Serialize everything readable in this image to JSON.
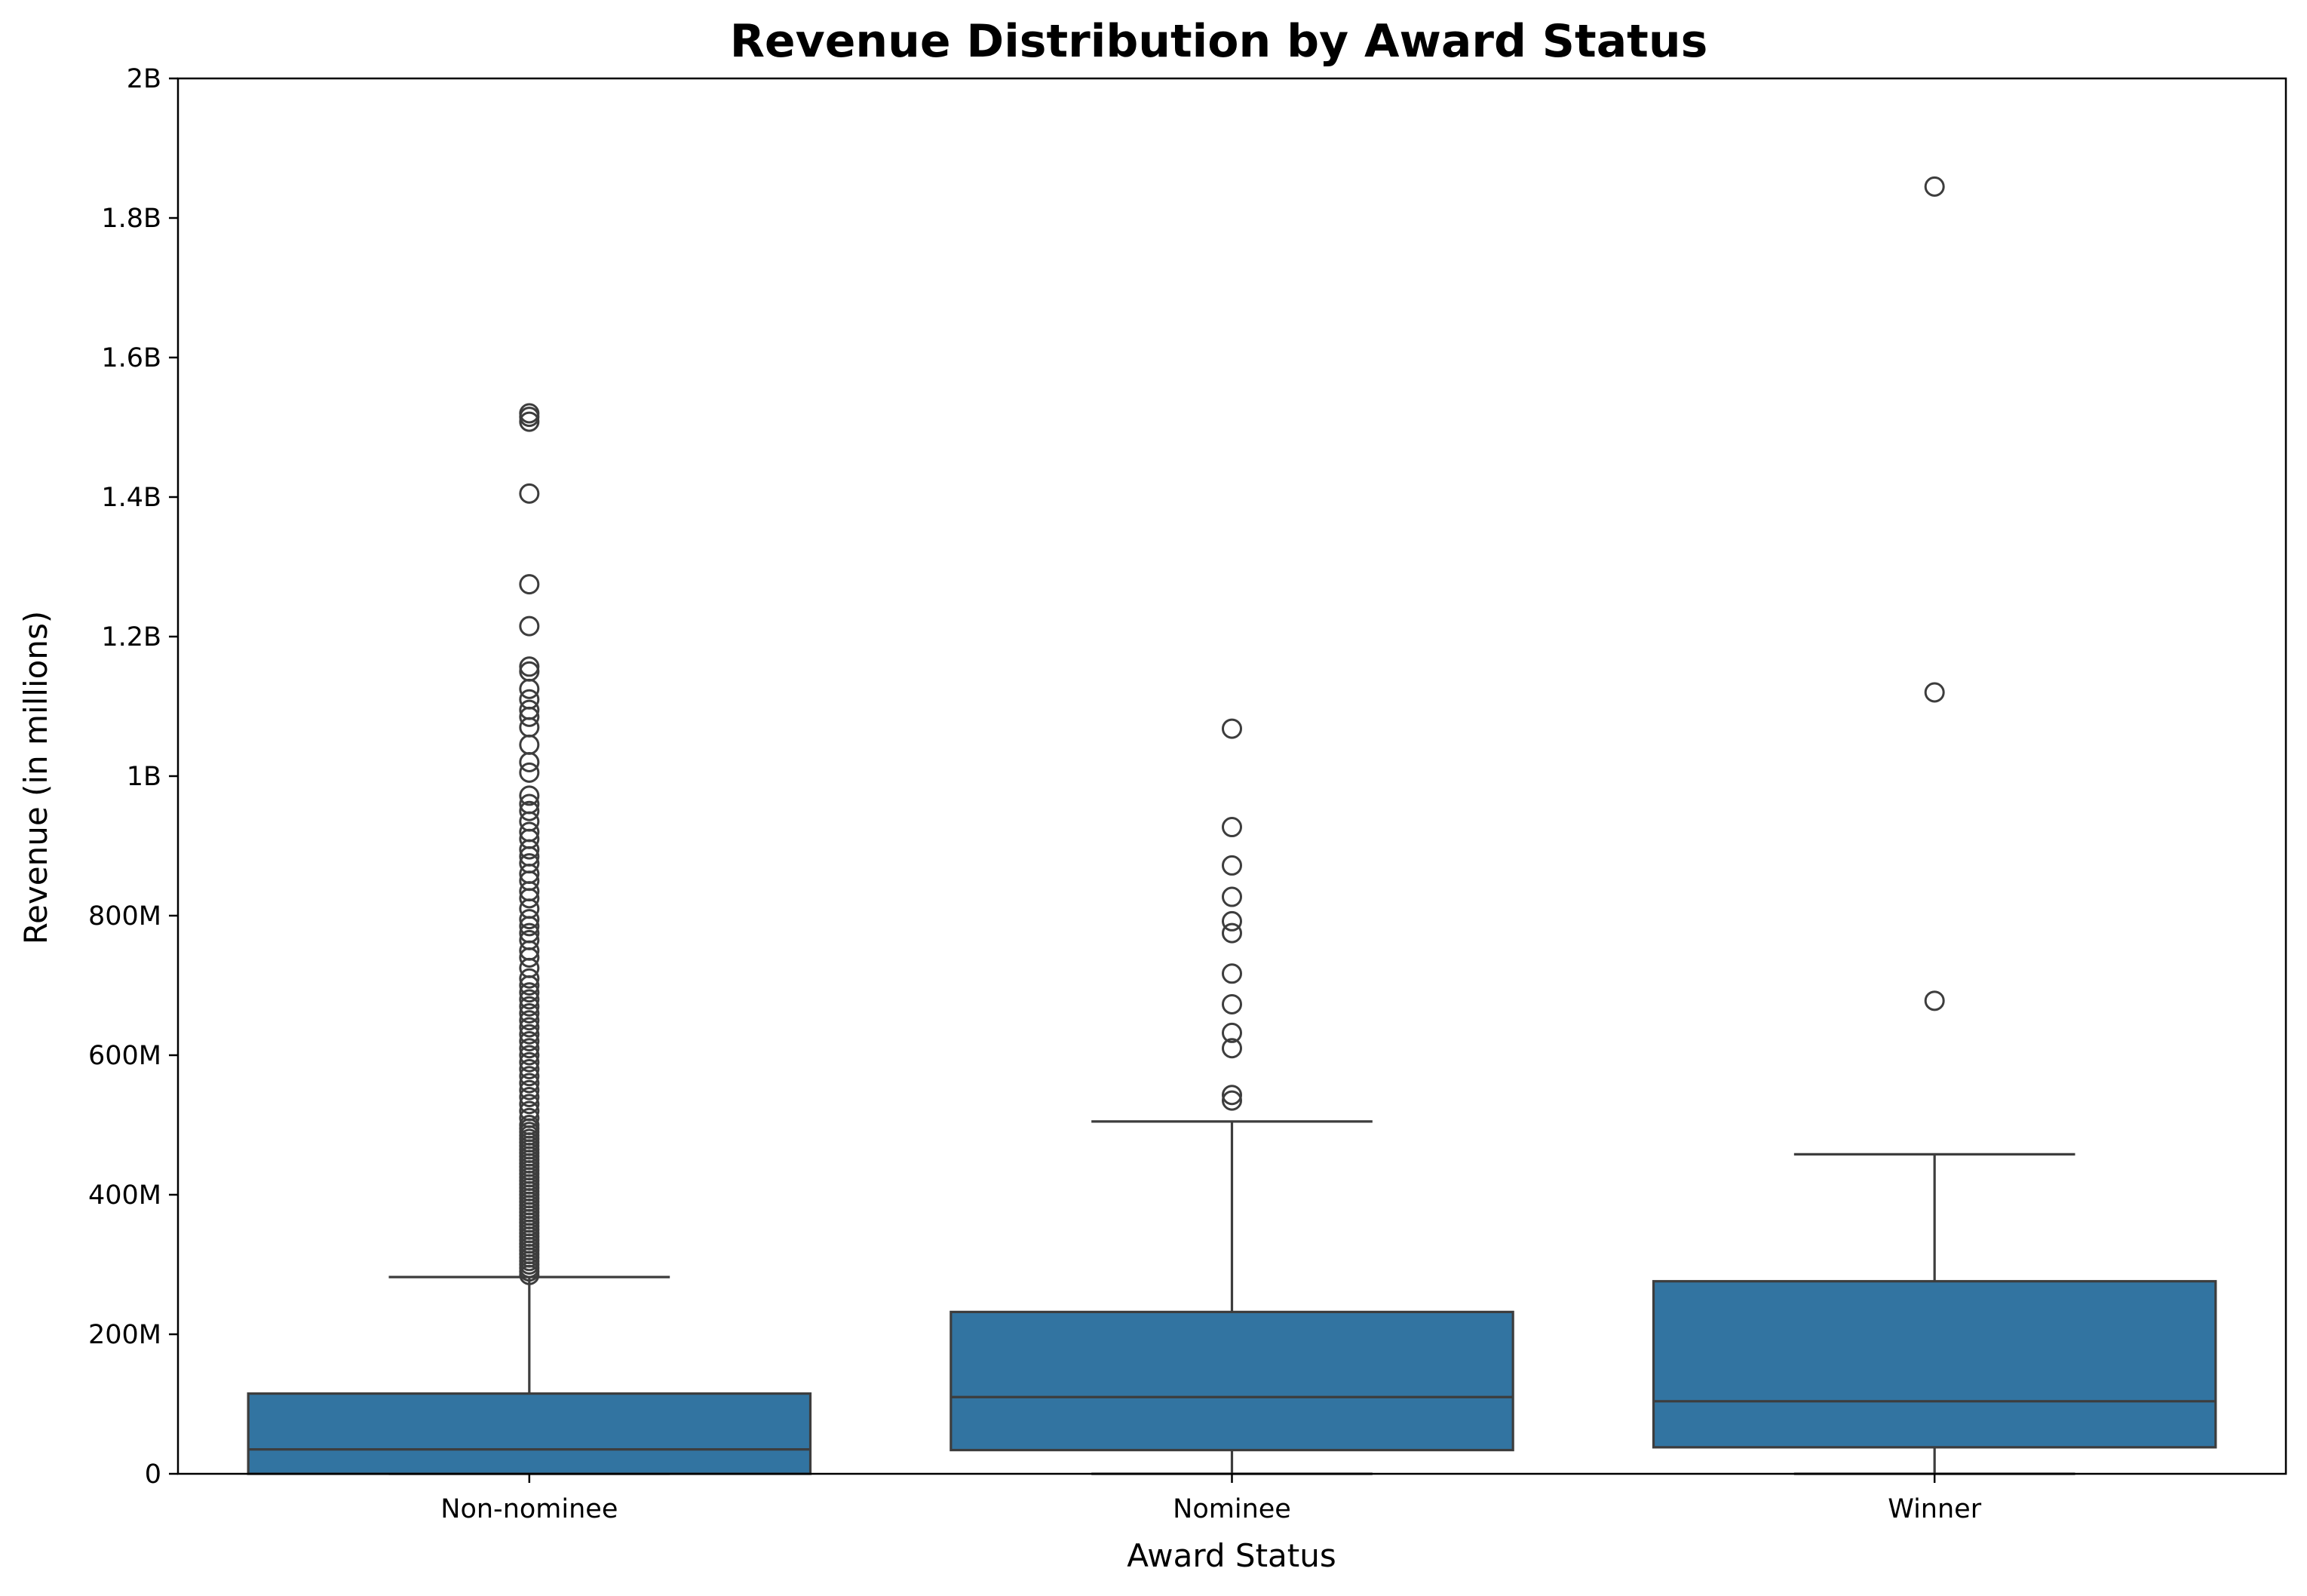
{
  "chart_data": {
    "type": "box",
    "title": "Revenue Distribution by Award Status",
    "xlabel": "Award Status",
    "ylabel": "Revenue (in millions)",
    "ylim": [
      0,
      2000000000
    ],
    "y_ticks": [
      {
        "value": 0,
        "label": "0"
      },
      {
        "value": 200000000,
        "label": "200M"
      },
      {
        "value": 400000000,
        "label": "400M"
      },
      {
        "value": 600000000,
        "label": "600M"
      },
      {
        "value": 800000000,
        "label": "800M"
      },
      {
        "value": 1000000000,
        "label": "1B"
      },
      {
        "value": 1200000000,
        "label": "1.2B"
      },
      {
        "value": 1400000000,
        "label": "1.4B"
      },
      {
        "value": 1600000000,
        "label": "1.6B"
      },
      {
        "value": 1800000000,
        "label": "1.8B"
      },
      {
        "value": 2000000000,
        "label": "2B"
      }
    ],
    "categories": [
      "Non-nominee",
      "Nominee",
      "Winner"
    ],
    "box_color": "#3274a1",
    "line_color": "#3d3d3d",
    "grid": false,
    "boxes": [
      {
        "category": "Non-nominee",
        "whisker_low": 0,
        "q1": 0,
        "median": 35000000,
        "q3": 115000000,
        "whisker_high": 282000000,
        "outliers": [
          285000000,
          290000000,
          295000000,
          300000000,
          305000000,
          310000000,
          315000000,
          320000000,
          325000000,
          330000000,
          335000000,
          340000000,
          345000000,
          350000000,
          355000000,
          360000000,
          365000000,
          370000000,
          375000000,
          380000000,
          385000000,
          390000000,
          395000000,
          400000000,
          405000000,
          410000000,
          415000000,
          420000000,
          425000000,
          430000000,
          435000000,
          440000000,
          445000000,
          450000000,
          455000000,
          460000000,
          465000000,
          470000000,
          475000000,
          480000000,
          485000000,
          490000000,
          495000000,
          500000000,
          510000000,
          520000000,
          530000000,
          540000000,
          550000000,
          560000000,
          570000000,
          580000000,
          590000000,
          600000000,
          610000000,
          620000000,
          630000000,
          640000000,
          650000000,
          660000000,
          670000000,
          680000000,
          690000000,
          700000000,
          710000000,
          725000000,
          740000000,
          750000000,
          765000000,
          775000000,
          785000000,
          795000000,
          810000000,
          825000000,
          835000000,
          850000000,
          860000000,
          875000000,
          885000000,
          895000000,
          910000000,
          920000000,
          935000000,
          950000000,
          960000000,
          972000000,
          1005000000,
          1020000000,
          1045000000,
          1070000000,
          1085000000,
          1095000000,
          1110000000,
          1125000000,
          1150000000,
          1157000000,
          1215000000,
          1275000000,
          1405000000,
          1508000000,
          1515000000,
          1520000000
        ]
      },
      {
        "category": "Nominee",
        "whisker_low": 0,
        "q1": 34000000,
        "median": 110000000,
        "q3": 232000000,
        "whisker_high": 505000000,
        "outliers": [
          535000000,
          543000000,
          610000000,
          632000000,
          673000000,
          717000000,
          775000000,
          792000000,
          827000000,
          872000000,
          927000000,
          1068000000
        ]
      },
      {
        "category": "Winner",
        "whisker_low": 0,
        "q1": 38000000,
        "median": 104000000,
        "q3": 276000000,
        "whisker_high": 458000000,
        "outliers": [
          678000000,
          1120000000,
          1845000000
        ]
      }
    ]
  }
}
